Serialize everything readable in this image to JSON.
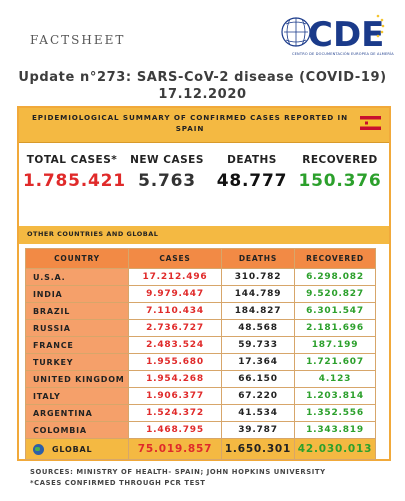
{
  "header": {
    "factsheet": "FACTSHEET",
    "logo_text": "CDE",
    "logo_subtext": "CENTRO DE DOCUMENTACIÓN EUROPEA DE ALMERÍA"
  },
  "title": "Update n°273: SARS-CoV-2 disease (COVID-19) 17.12.2020",
  "spain_summary": {
    "header": "EPIDEMIOLOGICAL SUMMARY OF CONFIRMED CASES REPORTED IN SPAIN",
    "stats": [
      {
        "label": "TOTAL CASES*",
        "value": "1.785.421",
        "color": "#e02a2a"
      },
      {
        "label": "NEW CASES",
        "value": "5.763",
        "color": "#333333"
      },
      {
        "label": "DEATHS",
        "value": "48.777",
        "color": "#111111"
      },
      {
        "label": "RECOVERED",
        "value": "150.376",
        "color": "#2ca02c"
      }
    ]
  },
  "global_section": {
    "header": "OTHER COUNTRIES AND GLOBAL",
    "columns": [
      "COUNTRY",
      "CASES",
      "DEATHS",
      "RECOVERED"
    ],
    "rows": [
      {
        "country": "U.S.A.",
        "cases": "17.212.496",
        "deaths": "310.782",
        "recovered": "6.298.082"
      },
      {
        "country": "INDIA",
        "cases": "9.979.447",
        "deaths": "144.789",
        "recovered": "9.520.827"
      },
      {
        "country": "BRAZIL",
        "cases": "7.110.434",
        "deaths": "184.827",
        "recovered": "6.301.547"
      },
      {
        "country": "RUSSIA",
        "cases": "2.736.727",
        "deaths": "48.568",
        "recovered": "2.181.696"
      },
      {
        "country": "FRANCE",
        "cases": "2.483.524",
        "deaths": "59.733",
        "recovered": "187.199"
      },
      {
        "country": "TURKEY",
        "cases": "1.955.680",
        "deaths": "17.364",
        "recovered": "1.721.607"
      },
      {
        "country": "UNITED KINGDOM",
        "cases": "1.954.268",
        "deaths": "66.150",
        "recovered": "4.123"
      },
      {
        "country": "ITALY",
        "cases": "1.906.377",
        "deaths": "67.220",
        "recovered": "1.203.814"
      },
      {
        "country": "ARGENTINA",
        "cases": "1.524.372",
        "deaths": "41.534",
        "recovered": "1.352.556"
      },
      {
        "country": "COLOMBIA",
        "cases": "1.468.795",
        "deaths": "39.787",
        "recovered": "1.343.819"
      }
    ],
    "global": {
      "country": "GLOBAL",
      "cases": "75.019.857",
      "deaths": "1.650.301",
      "recovered": "42.030.013"
    }
  },
  "footer": {
    "sources": "SOURCES: MINISTRY OF HEALTH- SPAIN; JOHN HOPKINS UNIVERSITY",
    "note": "*CASES CONFIRMED THROUGH PCR TEST"
  },
  "colors": {
    "accent": "#f4b942",
    "country_cell": "#f5a06a",
    "cases": "#e02a2a",
    "recovered": "#2ca02c"
  }
}
